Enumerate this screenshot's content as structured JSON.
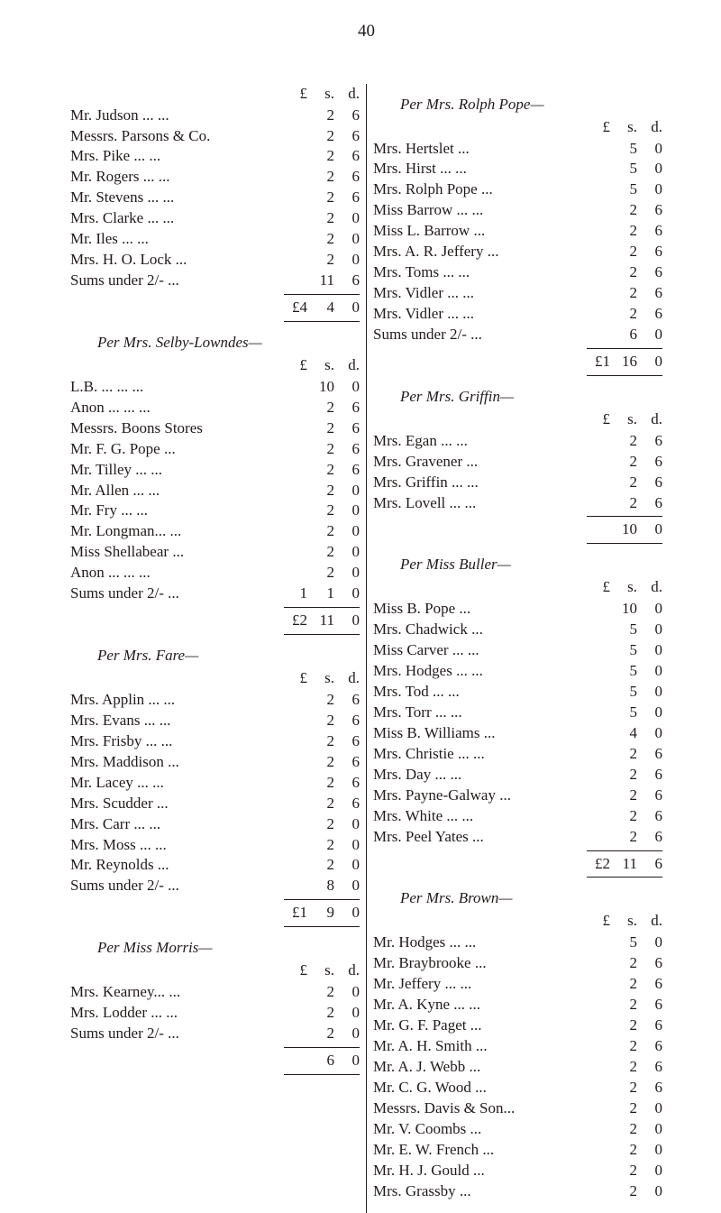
{
  "page_number": "40",
  "text_color": "#231a1a",
  "background_color": "#ffffff",
  "font_family": "Times New Roman",
  "body_fontsize": 17,
  "currency_labels": {
    "pound": "£",
    "shilling": "s.",
    "pence": "d."
  },
  "left_column": [
    {
      "title": "",
      "header": true,
      "entries": [
        {
          "name": "Mr. Judson   ...         ...",
          "l": "",
          "s": "2",
          "d": "6"
        },
        {
          "name": "Messrs. Parsons & Co.",
          "l": "",
          "s": "2",
          "d": "6"
        },
        {
          "name": "Mrs. Pike       ...         ...",
          "l": "",
          "s": "2",
          "d": "6"
        },
        {
          "name": "Mr. Rogers    ...         ...",
          "l": "",
          "s": "2",
          "d": "6"
        },
        {
          "name": "Mr. Stevens  ...         ...",
          "l": "",
          "s": "2",
          "d": "6"
        },
        {
          "name": "Mrs. Clarke   ...         ...",
          "l": "",
          "s": "2",
          "d": "0"
        },
        {
          "name": "Mr. Iles           ...         ...",
          "l": "",
          "s": "2",
          "d": "0"
        },
        {
          "name": "Mrs. H. O. Lock         ...",
          "l": "",
          "s": "2",
          "d": "0"
        },
        {
          "name": "Sums under 2/-          ...",
          "l": "",
          "s": "11",
          "d": "6"
        }
      ],
      "total": {
        "l": "£4",
        "s": "4",
        "d": "0"
      }
    },
    {
      "title": "Per Mrs. Selby-Lowndes—",
      "header": true,
      "entries": [
        {
          "name": "L.B.   ...         ...         ...",
          "l": "",
          "s": "10",
          "d": "0"
        },
        {
          "name": "Anon ...         ...         ...",
          "l": "",
          "s": "2",
          "d": "6"
        },
        {
          "name": "Messrs. Boons Stores",
          "l": "",
          "s": "2",
          "d": "6"
        },
        {
          "name": "Mr. F. G. Pope           ...",
          "l": "",
          "s": "2",
          "d": "6"
        },
        {
          "name": "Mr. Tilley       ...         ...",
          "l": "",
          "s": "2",
          "d": "6"
        },
        {
          "name": "Mr. Allen        ...         ...",
          "l": "",
          "s": "2",
          "d": "0"
        },
        {
          "name": "Mr. Fry           ...         ...",
          "l": "",
          "s": "2",
          "d": "0"
        },
        {
          "name": "Mr. Longman...         ...",
          "l": "",
          "s": "2",
          "d": "0"
        },
        {
          "name": "Miss Shellabear         ...",
          "l": "",
          "s": "2",
          "d": "0"
        },
        {
          "name": "Anon ...         ...         ...",
          "l": "",
          "s": "2",
          "d": "0"
        },
        {
          "name": "Sums under 2/-          ...",
          "l": "1",
          "s": "1",
          "d": "0"
        }
      ],
      "total": {
        "l": "£2",
        "s": "11",
        "d": "0"
      }
    },
    {
      "title": "Per Mrs. Fare—",
      "header": true,
      "entries": [
        {
          "name": "Mrs. Applin  ...         ...",
          "l": "",
          "s": "2",
          "d": "6"
        },
        {
          "name": "Mrs. Evans    ...         ...",
          "l": "",
          "s": "2",
          "d": "6"
        },
        {
          "name": "Mrs. Frisby   ...         ...",
          "l": "",
          "s": "2",
          "d": "6"
        },
        {
          "name": "Mrs. Maddison           ...",
          "l": "",
          "s": "2",
          "d": "6"
        },
        {
          "name": "Mr. Lacey      ...         ...",
          "l": "",
          "s": "2",
          "d": "6"
        },
        {
          "name": "Mrs. Scudder               ...",
          "l": "",
          "s": "2",
          "d": "6"
        },
        {
          "name": "Mrs. Carr        ...         ...",
          "l": "",
          "s": "2",
          "d": "0"
        },
        {
          "name": "Mrs. Moss       ...         ...",
          "l": "",
          "s": "2",
          "d": "0"
        },
        {
          "name": "Mr. Reynolds              ...",
          "l": "",
          "s": "2",
          "d": "0"
        },
        {
          "name": "Sums under 2/-          ...",
          "l": "",
          "s": "8",
          "d": "0"
        }
      ],
      "total": {
        "l": "£1",
        "s": "9",
        "d": "0"
      }
    },
    {
      "title": "Per Miss Morris—",
      "header": true,
      "entries": [
        {
          "name": "Mrs. Kearney...         ...",
          "l": "",
          "s": "2",
          "d": "0"
        },
        {
          "name": "Mrs. Lodder  ...         ...",
          "l": "",
          "s": "2",
          "d": "0"
        },
        {
          "name": "Sums under 2/-          ...",
          "l": "",
          "s": "2",
          "d": "0"
        }
      ],
      "total": {
        "l": "",
        "s": "6",
        "d": "0"
      }
    }
  ],
  "right_column": [
    {
      "title": "Per Mrs. Rolph Pope—",
      "header": true,
      "entries": [
        {
          "name": "Mrs. Hertslet               ...",
          "l": "",
          "s": "5",
          "d": "0"
        },
        {
          "name": "Mrs. Hirst       ...         ...",
          "l": "",
          "s": "5",
          "d": "0"
        },
        {
          "name": "Mrs. Rolph Pope        ...",
          "l": "",
          "s": "5",
          "d": "0"
        },
        {
          "name": "Miss Barrow ...         ...",
          "l": "",
          "s": "2",
          "d": "6"
        },
        {
          "name": "Miss L. Barrow          ...",
          "l": "",
          "s": "2",
          "d": "6"
        },
        {
          "name": "Mrs. A. R. Jeffery    ...",
          "l": "",
          "s": "2",
          "d": "6"
        },
        {
          "name": "Mrs. Toms      ...         ...",
          "l": "",
          "s": "2",
          "d": "6"
        },
        {
          "name": "Mrs. Vidler    ...         ...",
          "l": "",
          "s": "2",
          "d": "6"
        },
        {
          "name": "Mrs. Vidler    ...         ...",
          "l": "",
          "s": "2",
          "d": "6"
        },
        {
          "name": "Sums under 2/-          ...",
          "l": "",
          "s": "6",
          "d": "0"
        }
      ],
      "total": {
        "l": "£1",
        "s": "16",
        "d": "0"
      }
    },
    {
      "title": "Per Mrs. Griffin—",
      "header": true,
      "entries": [
        {
          "name": "Mrs. Egan       ...         ...",
          "l": "",
          "s": "2",
          "d": "6"
        },
        {
          "name": "Mrs. Gravener            ...",
          "l": "",
          "s": "2",
          "d": "6"
        },
        {
          "name": "Mrs. Griffin    ...         ...",
          "l": "",
          "s": "2",
          "d": "6"
        },
        {
          "name": "Mrs. Lovell    ...         ...",
          "l": "",
          "s": "2",
          "d": "6"
        }
      ],
      "total": {
        "l": "",
        "s": "10",
        "d": "0"
      }
    },
    {
      "title": "Per Miss Buller—",
      "header": true,
      "entries": [
        {
          "name": "Miss B. Pope               ...",
          "l": "",
          "s": "10",
          "d": "0"
        },
        {
          "name": "Mrs. Chadwick           ...",
          "l": "",
          "s": "5",
          "d": "0"
        },
        {
          "name": "Miss Carver   ...         ...",
          "l": "",
          "s": "5",
          "d": "0"
        },
        {
          "name": "Mrs. Hodges ...         ...",
          "l": "",
          "s": "5",
          "d": "0"
        },
        {
          "name": "Mrs. Tod         ...         ...",
          "l": "",
          "s": "5",
          "d": "0"
        },
        {
          "name": "Mrs. Torr        ...         ...",
          "l": "",
          "s": "5",
          "d": "0"
        },
        {
          "name": "Miss B. Williams       ...",
          "l": "",
          "s": "4",
          "d": "0"
        },
        {
          "name": "Mrs. Christie ...         ...",
          "l": "",
          "s": "2",
          "d": "6"
        },
        {
          "name": "Mrs. Day         ...         ...",
          "l": "",
          "s": "2",
          "d": "6"
        },
        {
          "name": "Mrs. Payne-Galway ...",
          "l": "",
          "s": "2",
          "d": "6"
        },
        {
          "name": "Mrs. White     ...         ...",
          "l": "",
          "s": "2",
          "d": "6"
        },
        {
          "name": "Mrs. Peel Yates          ...",
          "l": "",
          "s": "2",
          "d": "6"
        }
      ],
      "total": {
        "l": "£2",
        "s": "11",
        "d": "6"
      }
    },
    {
      "title": "Per Mrs. Brown—",
      "header": true,
      "entries": [
        {
          "name": "Mr. Hodges    ...         ...",
          "l": "",
          "s": "5",
          "d": "0"
        },
        {
          "name": "Mr. Braybrooke          ...",
          "l": "",
          "s": "2",
          "d": "6"
        },
        {
          "name": "Mr. Jeffery     ...         ...",
          "l": "",
          "s": "2",
          "d": "6"
        },
        {
          "name": "Mr. A. Kyne ...         ...",
          "l": "",
          "s": "2",
          "d": "6"
        },
        {
          "name": "Mr. G. F. Paget          ...",
          "l": "",
          "s": "2",
          "d": "6"
        },
        {
          "name": "Mr. A. H. Smith         ...",
          "l": "",
          "s": "2",
          "d": "6"
        },
        {
          "name": "Mr. A. J. Webb           ...",
          "l": "",
          "s": "2",
          "d": "6"
        },
        {
          "name": "Mr. C. G. Wood          ...",
          "l": "",
          "s": "2",
          "d": "6"
        },
        {
          "name": "Messrs. Davis & Son...",
          "l": "",
          "s": "2",
          "d": "0"
        },
        {
          "name": "Mr. V. Coombs           ...",
          "l": "",
          "s": "2",
          "d": "0"
        },
        {
          "name": "Mr. E. W. French      ...",
          "l": "",
          "s": "2",
          "d": "0"
        },
        {
          "name": "Mr. H. J. Gould          ...",
          "l": "",
          "s": "2",
          "d": "0"
        },
        {
          "name": "Mrs. Grassby              ...",
          "l": "",
          "s": "2",
          "d": "0"
        }
      ]
    }
  ]
}
